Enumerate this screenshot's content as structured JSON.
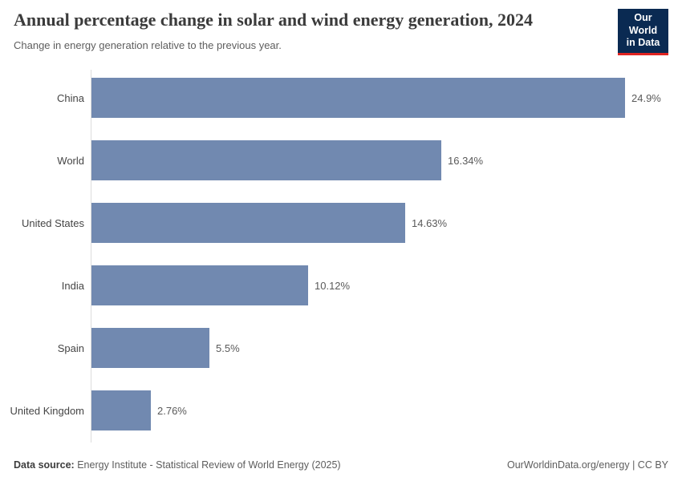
{
  "header": {
    "title": "Annual percentage change in solar and wind energy generation, 2024",
    "subtitle": "Change in energy generation relative to the previous year.",
    "logo": {
      "line1": "Our World",
      "line2": "in Data"
    }
  },
  "chart_data": {
    "type": "bar",
    "orientation": "horizontal",
    "title": "Annual percentage change in solar and wind energy generation, 2024",
    "subtitle": "Change in energy generation relative to the previous year.",
    "categories": [
      "China",
      "World",
      "United States",
      "India",
      "Spain",
      "United Kingdom"
    ],
    "values": [
      24.9,
      16.34,
      14.63,
      10.12,
      5.5,
      2.76
    ],
    "value_labels": [
      "24.9%",
      "16.34%",
      "14.63%",
      "10.12%",
      "5.5%",
      "2.76%"
    ],
    "unit": "%",
    "xlabel": "",
    "ylabel": "",
    "xlim": [
      0,
      27
    ],
    "grid": false,
    "legend": "none"
  },
  "footer": {
    "datasource_label": "Data source:",
    "datasource_text": " Energy Institute - Statistical Review of World Energy (2025)",
    "attribution": "OurWorldinData.org/energy | CC BY"
  },
  "colors": {
    "bar": "#7189b0",
    "logo_bg": "#0a2a52",
    "logo_accent": "#e02421",
    "title_text": "#3b3b3b",
    "axis_line": "#dcdcdc"
  }
}
